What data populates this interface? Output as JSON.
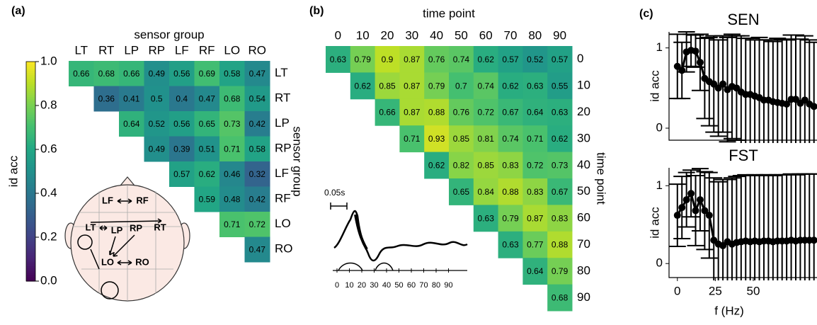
{
  "chart_data": [
    {
      "type": "heatmap",
      "panel": "(a)",
      "x_label": "sensor group",
      "y_label": "sensor group",
      "categories": [
        "LT",
        "RT",
        "LP",
        "RP",
        "LF",
        "RF",
        "LO",
        "RO"
      ],
      "values": [
        [
          0.66,
          0.68,
          0.66,
          0.49,
          0.56,
          0.69,
          0.58,
          0.47
        ],
        [
          null,
          0.36,
          0.41,
          0.5,
          0.4,
          0.47,
          0.68,
          0.54
        ],
        [
          null,
          null,
          0.64,
          0.52,
          0.56,
          0.65,
          0.73,
          0.42
        ],
        [
          null,
          null,
          null,
          0.49,
          0.39,
          0.51,
          0.71,
          0.58
        ],
        [
          null,
          null,
          null,
          null,
          0.57,
          0.62,
          0.46,
          0.32
        ],
        [
          null,
          null,
          null,
          null,
          null,
          0.59,
          0.48,
          0.42
        ],
        [
          null,
          null,
          null,
          null,
          null,
          null,
          0.71,
          0.72
        ],
        [
          null,
          null,
          null,
          null,
          null,
          null,
          null,
          0.47
        ]
      ],
      "colormap": "viridis",
      "colorbar": {
        "label": "id acc",
        "lim": [
          0,
          1
        ],
        "ticks": [
          {
            "value": 0,
            "label": "0.0"
          },
          {
            "value": 0.2,
            "label": "0.2"
          },
          {
            "value": 0.4,
            "label": "0.4"
          },
          {
            "value": 0.6,
            "label": "0.6"
          },
          {
            "value": 0.8,
            "label": "0.8"
          },
          {
            "value": 1,
            "label": "1.0"
          }
        ]
      },
      "head_labels": [
        "LF",
        "RF",
        "LT",
        "LP",
        "RP",
        "RT",
        "LO",
        "RO"
      ]
    },
    {
      "type": "heatmap",
      "panel": "(b)",
      "x_label": "time point",
      "y_label": "time point",
      "categories": [
        0,
        10,
        20,
        30,
        40,
        50,
        60,
        70,
        80,
        90
      ],
      "values": [
        [
          0.63,
          0.79,
          0.9,
          0.87,
          0.76,
          0.74,
          0.62,
          0.57,
          0.52,
          0.57
        ],
        [
          null,
          0.62,
          0.85,
          0.87,
          0.79,
          0.7,
          0.74,
          0.62,
          0.63,
          0.55
        ],
        [
          null,
          null,
          0.66,
          0.87,
          0.88,
          0.76,
          0.72,
          0.67,
          0.64,
          0.63
        ],
        [
          null,
          null,
          null,
          0.71,
          0.93,
          0.85,
          0.81,
          0.74,
          0.71,
          0.62
        ],
        [
          null,
          null,
          null,
          null,
          0.62,
          0.82,
          0.85,
          0.83,
          0.72,
          0.73
        ],
        [
          null,
          null,
          null,
          null,
          null,
          0.65,
          0.84,
          0.88,
          0.83,
          0.67
        ],
        [
          null,
          null,
          null,
          null,
          null,
          null,
          0.63,
          0.79,
          0.87,
          0.83
        ],
        [
          null,
          null,
          null,
          null,
          null,
          null,
          null,
          0.63,
          0.77,
          0.88
        ],
        [
          null,
          null,
          null,
          null,
          null,
          null,
          null,
          null,
          0.64,
          0.79
        ],
        [
          null,
          null,
          null,
          null,
          null,
          null,
          null,
          null,
          null,
          0.68
        ]
      ],
      "colormap": "viridis",
      "inset": {
        "scale_label": "0.05s",
        "ticks": [
          0,
          10,
          20,
          30,
          40,
          50,
          60,
          70,
          80,
          90
        ]
      }
    },
    {
      "type": "line",
      "panel": "(c)",
      "title": "SEN",
      "y_label": "id acc",
      "color": "#000000",
      "x": [
        0,
        3,
        6,
        9,
        12,
        15,
        18,
        21,
        24,
        27,
        30,
        33,
        36,
        39,
        42,
        45,
        48,
        51,
        54,
        57,
        60,
        63,
        66,
        69,
        72,
        75,
        78,
        81,
        84,
        87,
        90
      ],
      "values": [
        0.77,
        0.72,
        0.95,
        0.97,
        0.96,
        0.82,
        0.62,
        0.58,
        0.55,
        0.5,
        0.55,
        0.48,
        0.52,
        0.5,
        0.45,
        0.42,
        0.42,
        0.4,
        0.38,
        0.35,
        0.35,
        0.33,
        0.32,
        0.31,
        0.3,
        0.36,
        0.36,
        0.31,
        0.35,
        0.3,
        0.27
      ],
      "errors": [
        0.4,
        0.35,
        0.25,
        0.2,
        0.2,
        0.35,
        0.5,
        0.55,
        0.6,
        0.6,
        0.6,
        0.65,
        0.65,
        0.65,
        0.7,
        0.7,
        0.7,
        0.7,
        0.75,
        0.75,
        0.75,
        0.75,
        0.8,
        0.8,
        0.8,
        0.8,
        0.8,
        0.8,
        0.8,
        0.8,
        0.8
      ],
      "xlim": [
        -5.5,
        92
      ],
      "ylim": [
        -0.15,
        1.2
      ],
      "yticks": [
        0,
        1
      ]
    },
    {
      "type": "line",
      "title": "FST",
      "x_label": "f (Hz)",
      "y_label": "id acc",
      "color": "#000000",
      "x": [
        0,
        3,
        6,
        9,
        12,
        15,
        18,
        21,
        24,
        27,
        30,
        33,
        36,
        39,
        42,
        45,
        48,
        51,
        54,
        57,
        60,
        63,
        66,
        69,
        72,
        75,
        78,
        81,
        84,
        87,
        90
      ],
      "values": [
        0.62,
        0.72,
        0.82,
        0.9,
        0.68,
        0.82,
        0.68,
        0.62,
        0.3,
        0.25,
        0.23,
        0.28,
        0.25,
        0.27,
        0.28,
        0.29,
        0.28,
        0.29,
        0.28,
        0.29,
        0.29,
        0.28,
        0.29,
        0.29,
        0.29,
        0.3,
        0.29,
        0.3,
        0.3,
        0.3,
        0.3
      ],
      "errors": [
        0.4,
        0.4,
        0.35,
        0.3,
        0.45,
        0.4,
        0.5,
        0.55,
        0.8,
        0.8,
        0.85,
        0.8,
        0.85,
        0.85,
        0.85,
        0.85,
        0.85,
        0.85,
        0.85,
        0.85,
        0.85,
        0.85,
        0.85,
        0.85,
        0.85,
        0.85,
        0.85,
        0.85,
        0.85,
        0.85,
        0.85
      ],
      "xlim": [
        -5.5,
        92
      ],
      "ylim": [
        -0.18,
        1.23
      ],
      "xticks": [
        0,
        25,
        50
      ],
      "yticks": [
        0,
        1
      ]
    }
  ]
}
